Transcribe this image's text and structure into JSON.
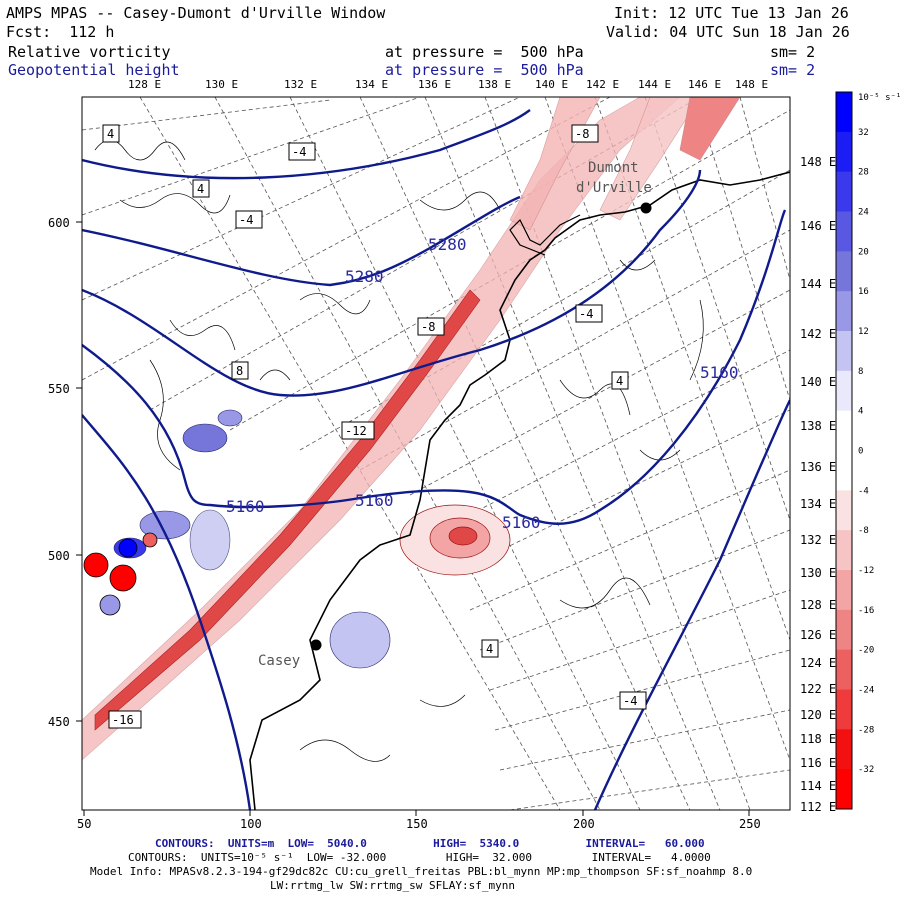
{
  "header": {
    "model": "AMPS MPAS -- Casey-Dumont d'Urville Window",
    "init": "Init: 12 UTC Tue 13 Jan 26",
    "fcst": "Fcst:  112 h",
    "valid": "Valid: 04 UTC Sun 18 Jan 26",
    "field1": "Relative vorticity",
    "field1_level": "at pressure =  500 hPa",
    "field1_sm": "sm= 2",
    "field2": "Geopotential height",
    "field2_level": "at pressure =  500 hPa",
    "field2_sm": "sm= 2"
  },
  "top_lon_labels": [
    "128 E",
    "130 E",
    "132 E",
    "134 E",
    "136 E",
    "138 E",
    "140 E",
    "142 E",
    "144 E",
    "146 E",
    "148 E"
  ],
  "right_lat_labels": [
    "148 E",
    "146 E",
    "144 E",
    "142 E",
    "140 E",
    "138 E",
    "136 E",
    "134 E",
    "132 E",
    "130 E",
    "128 E",
    "126 E",
    "124 E",
    "122 E",
    "120 E",
    "118 E",
    "116 E",
    "114 E",
    "112 E"
  ],
  "x_axis_labels": [
    "50",
    "100",
    "150",
    "200",
    "250"
  ],
  "y_axis_labels": [
    "600",
    "550",
    "500",
    "450"
  ],
  "stations": [
    {
      "name": "Dumont d'Urville",
      "line1": "Dumont",
      "line2": "d'Urville"
    },
    {
      "name": "Casey",
      "line1": "Casey",
      "line2": ""
    }
  ],
  "height_contour_labels": [
    "5280",
    "5280",
    "5160",
    "5160",
    "5160",
    "5160"
  ],
  "vorticity_labels": [
    "4",
    "-4",
    "-8",
    "-12",
    "-16",
    "8",
    "4",
    "-4",
    "-8",
    "4",
    "-4",
    "4",
    "-4"
  ],
  "colorbar": {
    "unit": "10⁻⁵ s⁻¹",
    "labels": [
      "32",
      "28",
      "24",
      "20",
      "16",
      "12",
      "8",
      "4",
      "0",
      "-4",
      "-8",
      "-12",
      "-16",
      "-20",
      "-24",
      "-28",
      "-32"
    ],
    "colors": [
      "#0000ff",
      "#1c1cf5",
      "#3a3aec",
      "#5858e3",
      "#7676da",
      "#9898e6",
      "#c4c4f2",
      "#e9e9fb",
      "#ffffff",
      "#ffffff",
      "#fbe2e2",
      "#f6c4c4",
      "#f3a5a5",
      "#ef8484",
      "#ec6060",
      "#ef3b3b",
      "#f31010",
      "#ff0000"
    ]
  },
  "footer": {
    "line1": "CONTOURS:  UNITS=m  LOW=  5040.0          HIGH=  5340.0          INTERVAL=   60.000",
    "line2": "CONTOURS:  UNITS=10⁻⁵ s⁻¹  LOW= -32.000         HIGH=  32.000         INTERVAL=   4.0000",
    "line3": "Model Info: MPASv8.2.3-194-gf29dc82c CU:cu_grell_freitas PBL:bl_mynn MP:mp_thompson SF:sf_noahmp 8.0",
    "line4": "LW:rrtmg_lw SW:rrtmg_sw SFLAY:sf_mynn"
  }
}
